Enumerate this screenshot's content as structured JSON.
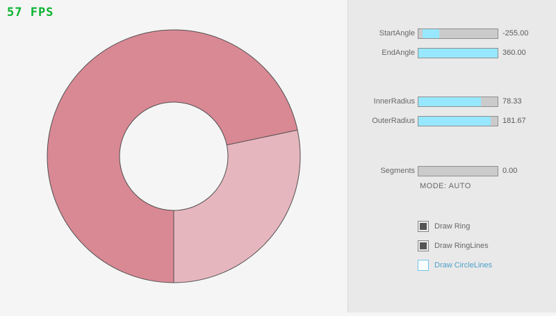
{
  "fps_label": "57 FPS",
  "colors": {
    "ring_dark": "#d98994",
    "ring_light": "#e6b6be",
    "ring_outline": "#4f4f4f",
    "slider_accent": "#97e8ff",
    "fps_green": "#0ab32f"
  },
  "ring_params": {
    "start_angle": -255.0,
    "end_angle": 360.0,
    "inner_radius": 78.33,
    "outer_radius": 181.67,
    "segments": 0
  },
  "panel": {
    "sliders": [
      {
        "label": "StartAngle",
        "value": "-255.00",
        "fill_start": 5,
        "fill_end": 26
      },
      {
        "label": "EndAngle",
        "value": "360.00",
        "fill_start": 0,
        "fill_end": 100
      },
      {
        "label": "InnerRadius",
        "value": "78.33",
        "fill_start": 0,
        "fill_end": 79
      },
      {
        "label": "OuterRadius",
        "value": "181.67",
        "fill_start": 0,
        "fill_end": 91
      },
      {
        "label": "Segments",
        "value": "0.00",
        "fill_start": 0,
        "fill_end": 0
      }
    ],
    "mode_label": "MODE: AUTO",
    "checkboxes": [
      {
        "label": "Draw Ring",
        "checked": true
      },
      {
        "label": "Draw RingLines",
        "checked": true
      },
      {
        "label": "Draw CircleLines",
        "checked": false
      }
    ]
  }
}
